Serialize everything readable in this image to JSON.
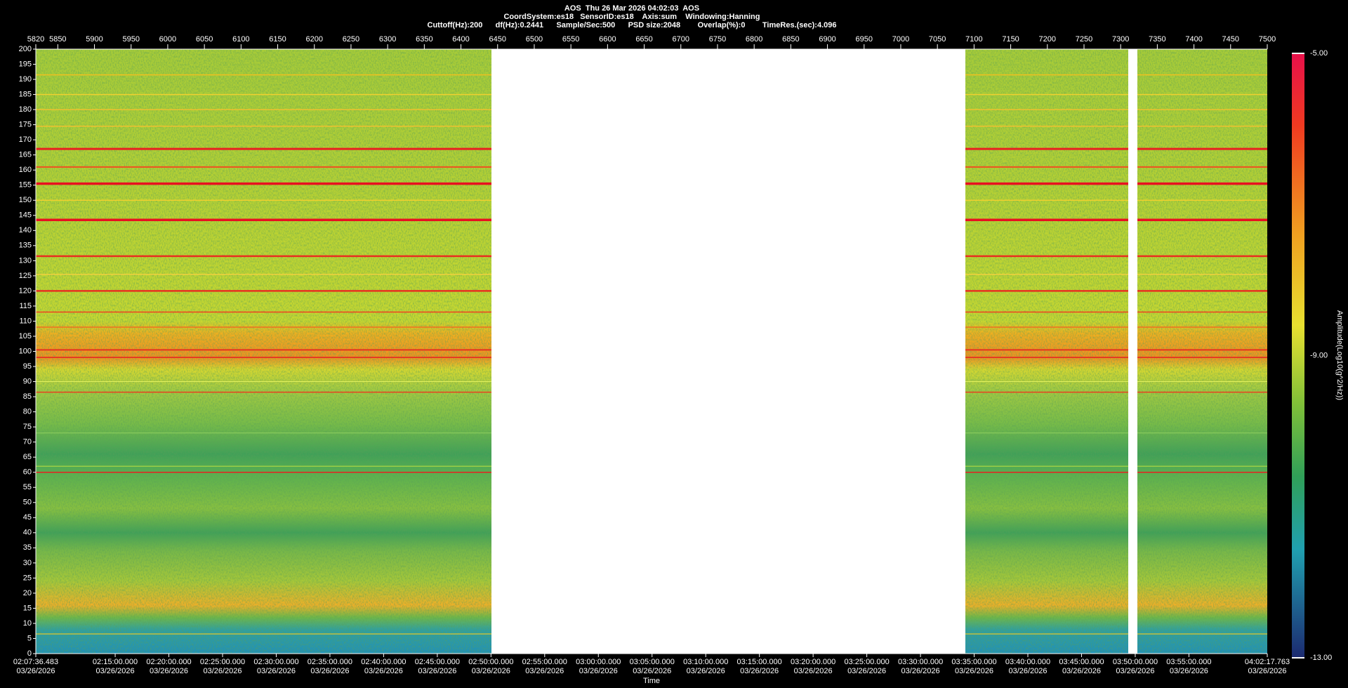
{
  "header": {
    "lines": [
      "AOS  Thu 26 Mar 2026 04:02:03  AOS",
      "CoordSystem:es18   SensorID:es18    Axis:sum    Windowing:Hanning",
      "Cuttoff(Hz):200      df(Hz):0.2441      Sample/Sec:500      PSD size:2048        Overlap(%):0        TimeRes.(sec):4.096"
    ]
  },
  "top_axis": {
    "ticks": [
      5820,
      5850,
      5900,
      5950,
      6000,
      6050,
      6100,
      6150,
      6200,
      6250,
      6300,
      6350,
      6400,
      6450,
      6500,
      6550,
      6600,
      6650,
      6700,
      6750,
      6800,
      6850,
      6900,
      6950,
      7000,
      7050,
      7100,
      7150,
      7200,
      7250,
      7300,
      7350,
      7400,
      7450,
      7500
    ]
  },
  "y_axis": {
    "ticks": [
      0,
      5,
      10,
      15,
      20,
      25,
      30,
      35,
      40,
      45,
      50,
      55,
      60,
      65,
      70,
      75,
      80,
      85,
      90,
      95,
      100,
      105,
      110,
      115,
      120,
      125,
      130,
      135,
      140,
      145,
      150,
      155,
      160,
      165,
      170,
      175,
      180,
      185,
      190,
      195,
      200
    ]
  },
  "x_axis": {
    "label": "Time",
    "ticks": [
      {
        "time": "02:07:36.483",
        "date": "03/26/2026"
      },
      {
        "time": "02:15:00.000",
        "date": "03/26/2026"
      },
      {
        "time": "02:20:00.000",
        "date": "03/26/2026"
      },
      {
        "time": "02:25:00.000",
        "date": "03/26/2026"
      },
      {
        "time": "02:30:00.000",
        "date": "03/26/2026"
      },
      {
        "time": "02:35:00.000",
        "date": "03/26/2026"
      },
      {
        "time": "02:40:00.000",
        "date": "03/26/2026"
      },
      {
        "time": "02:45:00.000",
        "date": "03/26/2026"
      },
      {
        "time": "02:50:00.000",
        "date": "03/26/2026"
      },
      {
        "time": "02:55:00.000",
        "date": "03/26/2026"
      },
      {
        "time": "03:00:00.000",
        "date": "03/26/2026"
      },
      {
        "time": "03:05:00.000",
        "date": "03/26/2026"
      },
      {
        "time": "03:10:00.000",
        "date": "03/26/2026"
      },
      {
        "time": "03:15:00.000",
        "date": "03/26/2026"
      },
      {
        "time": "03:20:00.000",
        "date": "03/26/2026"
      },
      {
        "time": "03:25:00.000",
        "date": "03/26/2026"
      },
      {
        "time": "03:30:00.000",
        "date": "03/26/2026"
      },
      {
        "time": "03:35:00.000",
        "date": "03/26/2026"
      },
      {
        "time": "03:40:00.000",
        "date": "03/26/2026"
      },
      {
        "time": "03:45:00.000",
        "date": "03/26/2026"
      },
      {
        "time": "03:50:00.000",
        "date": "03/26/2026"
      },
      {
        "time": "03:55:00.000",
        "date": "03/26/2026"
      },
      {
        "time": "04:02:17.763",
        "date": "03/26/2026"
      }
    ]
  },
  "colorbar": {
    "label": "Amplitude(Log10(g^2/Hz))",
    "ticks": [
      "-5.00",
      "-9.00",
      "-13.00"
    ]
  }
}
